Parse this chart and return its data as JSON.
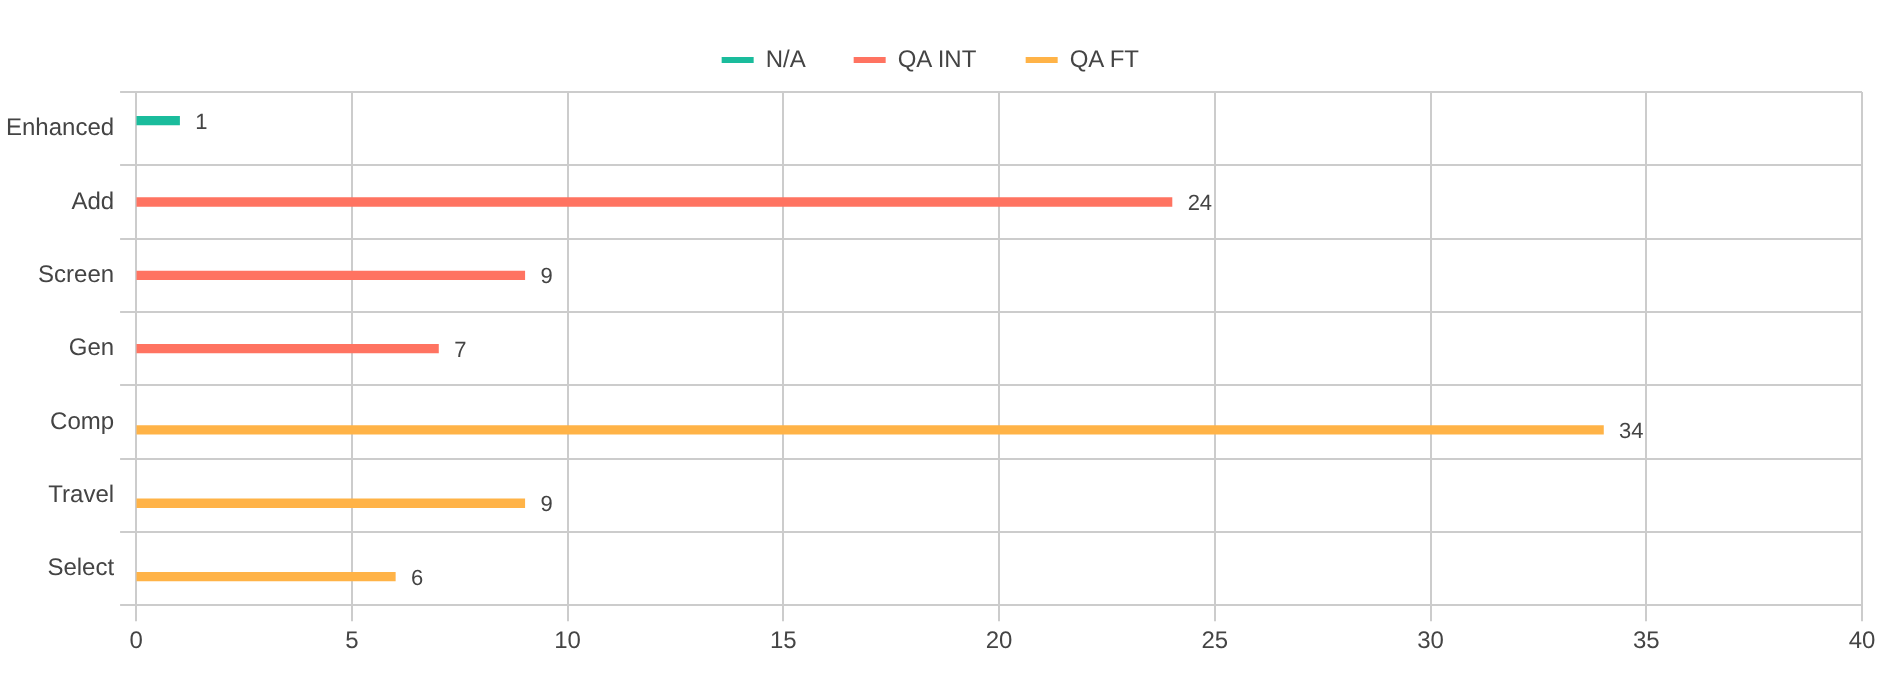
{
  "chart_data": {
    "type": "bar",
    "orientation": "horizontal",
    "categories": [
      "Enhanced",
      "Add",
      "Screen",
      "Gen",
      "Comp",
      "Travel",
      "Select"
    ],
    "series": [
      {
        "name": "N/A",
        "color": "#1abc9c",
        "values": [
          1,
          null,
          null,
          null,
          null,
          null,
          null
        ]
      },
      {
        "name": "QA INT",
        "color": "#ff7361",
        "values": [
          null,
          24,
          9,
          7,
          null,
          null,
          null
        ]
      },
      {
        "name": "QA FT",
        "color": "#ffb347",
        "values": [
          null,
          null,
          null,
          null,
          34,
          9,
          6
        ]
      }
    ],
    "xlim": [
      0,
      40
    ],
    "xticks": [
      0,
      5,
      10,
      15,
      20,
      25,
      30,
      35,
      40
    ],
    "grid": true,
    "legend": "top",
    "data_labels": true
  }
}
